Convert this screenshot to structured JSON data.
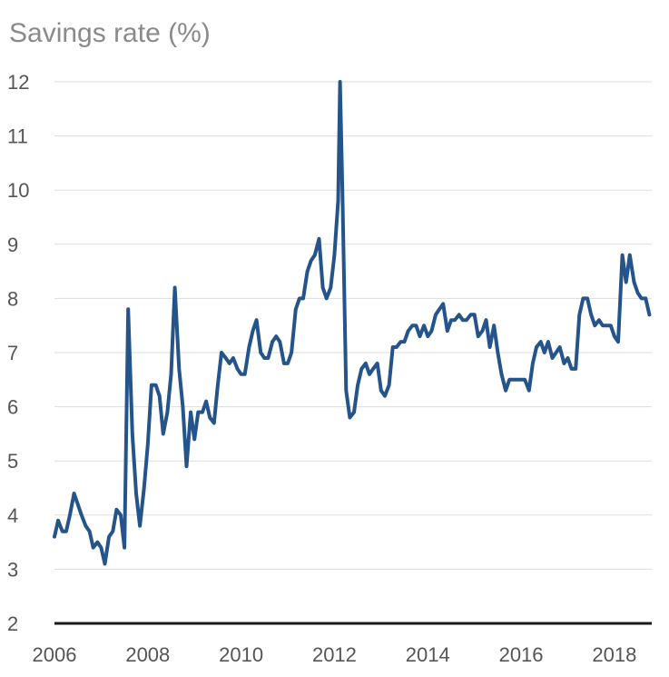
{
  "chart_data": {
    "type": "line",
    "title": "Savings rate (%)",
    "xlabel": "",
    "ylabel": "",
    "xlim": [
      2006,
      2018.8
    ],
    "ylim": [
      2,
      12
    ],
    "grid": true,
    "legend": "none",
    "colors": {
      "line": "#245489",
      "grid": "#dddddd",
      "baseline": "#1a1a1a"
    },
    "y_ticks": [
      2,
      3,
      4,
      5,
      6,
      7,
      8,
      9,
      10,
      11,
      12
    ],
    "x_ticks": [
      2006,
      2008,
      2010,
      2012,
      2014,
      2016,
      2018
    ],
    "series": [
      {
        "name": "Savings rate",
        "x": [
          2006.0,
          2006.08,
          2006.17,
          2006.25,
          2006.33,
          2006.42,
          2006.5,
          2006.58,
          2006.67,
          2006.75,
          2006.83,
          2006.92,
          2007.0,
          2007.08,
          2007.17,
          2007.25,
          2007.33,
          2007.42,
          2007.5,
          2007.58,
          2007.67,
          2007.75,
          2007.83,
          2007.92,
          2008.0,
          2008.08,
          2008.17,
          2008.25,
          2008.33,
          2008.42,
          2008.5,
          2008.58,
          2008.67,
          2008.75,
          2008.83,
          2008.92,
          2009.0,
          2009.08,
          2009.17,
          2009.25,
          2009.33,
          2009.42,
          2009.5,
          2009.58,
          2009.67,
          2009.75,
          2009.83,
          2009.92,
          2010.0,
          2010.08,
          2010.17,
          2010.25,
          2010.33,
          2010.42,
          2010.5,
          2010.58,
          2010.67,
          2010.75,
          2010.83,
          2010.92,
          2011.0,
          2011.08,
          2011.17,
          2011.25,
          2011.33,
          2011.42,
          2011.5,
          2011.58,
          2011.67,
          2011.75,
          2011.83,
          2011.92,
          2012.0,
          2012.08,
          2012.12,
          2012.17,
          2012.25,
          2012.33,
          2012.42,
          2012.5,
          2012.58,
          2012.67,
          2012.75,
          2012.83,
          2012.92,
          2013.0,
          2013.08,
          2013.17,
          2013.25,
          2013.33,
          2013.42,
          2013.5,
          2013.58,
          2013.67,
          2013.75,
          2013.83,
          2013.92,
          2014.0,
          2014.08,
          2014.17,
          2014.25,
          2014.33,
          2014.42,
          2014.5,
          2014.58,
          2014.67,
          2014.75,
          2014.83,
          2014.92,
          2015.0,
          2015.08,
          2015.17,
          2015.25,
          2015.33,
          2015.42,
          2015.5,
          2015.58,
          2015.67,
          2015.75,
          2015.83,
          2015.92,
          2016.0,
          2016.08,
          2016.17,
          2016.25,
          2016.33,
          2016.42,
          2016.5,
          2016.58,
          2016.67,
          2016.75,
          2016.83,
          2016.92,
          2017.0,
          2017.08,
          2017.17,
          2017.25,
          2017.33,
          2017.42,
          2017.5,
          2017.58,
          2017.67,
          2017.75,
          2017.83,
          2017.92,
          2018.0,
          2018.08,
          2018.17,
          2018.25,
          2018.33,
          2018.42,
          2018.5,
          2018.58,
          2018.67,
          2018.75
        ],
        "values": [
          3.6,
          3.9,
          3.7,
          3.7,
          4.0,
          4.4,
          4.2,
          4.0,
          3.8,
          3.7,
          3.4,
          3.5,
          3.4,
          3.1,
          3.6,
          3.7,
          4.1,
          4.0,
          3.4,
          7.8,
          5.5,
          4.4,
          3.8,
          4.5,
          5.3,
          6.4,
          6.4,
          6.2,
          5.5,
          5.9,
          6.6,
          8.2,
          6.7,
          6.0,
          4.9,
          5.9,
          5.4,
          5.9,
          5.9,
          6.1,
          5.8,
          5.7,
          6.4,
          7.0,
          6.9,
          6.8,
          6.9,
          6.7,
          6.6,
          6.6,
          7.1,
          7.4,
          7.6,
          7.0,
          6.9,
          6.9,
          7.2,
          7.3,
          7.2,
          6.8,
          6.8,
          7.0,
          7.8,
          8.0,
          8.0,
          8.5,
          8.7,
          8.8,
          9.1,
          8.2,
          8.0,
          8.2,
          8.8,
          9.8,
          12.0,
          10.0,
          6.3,
          5.8,
          5.9,
          6.4,
          6.7,
          6.8,
          6.6,
          6.7,
          6.8,
          6.3,
          6.2,
          6.4,
          7.1,
          7.1,
          7.2,
          7.2,
          7.4,
          7.5,
          7.5,
          7.3,
          7.5,
          7.3,
          7.4,
          7.7,
          7.8,
          7.9,
          7.4,
          7.6,
          7.6,
          7.7,
          7.6,
          7.6,
          7.7,
          7.7,
          7.3,
          7.4,
          7.6,
          7.1,
          7.5,
          7.0,
          6.6,
          6.3,
          6.5,
          6.5,
          6.5,
          6.5,
          6.5,
          6.3,
          6.8,
          7.1,
          7.2,
          7.0,
          7.2,
          6.9,
          7.0,
          7.1,
          6.8,
          6.9,
          6.7,
          6.7,
          7.7,
          8.0,
          8.0,
          7.7,
          7.5,
          7.6,
          7.5,
          7.5,
          7.5,
          7.3,
          7.2,
          8.8,
          8.3,
          8.8,
          8.3,
          8.1,
          8.0,
          8.0,
          7.7
        ]
      }
    ]
  }
}
